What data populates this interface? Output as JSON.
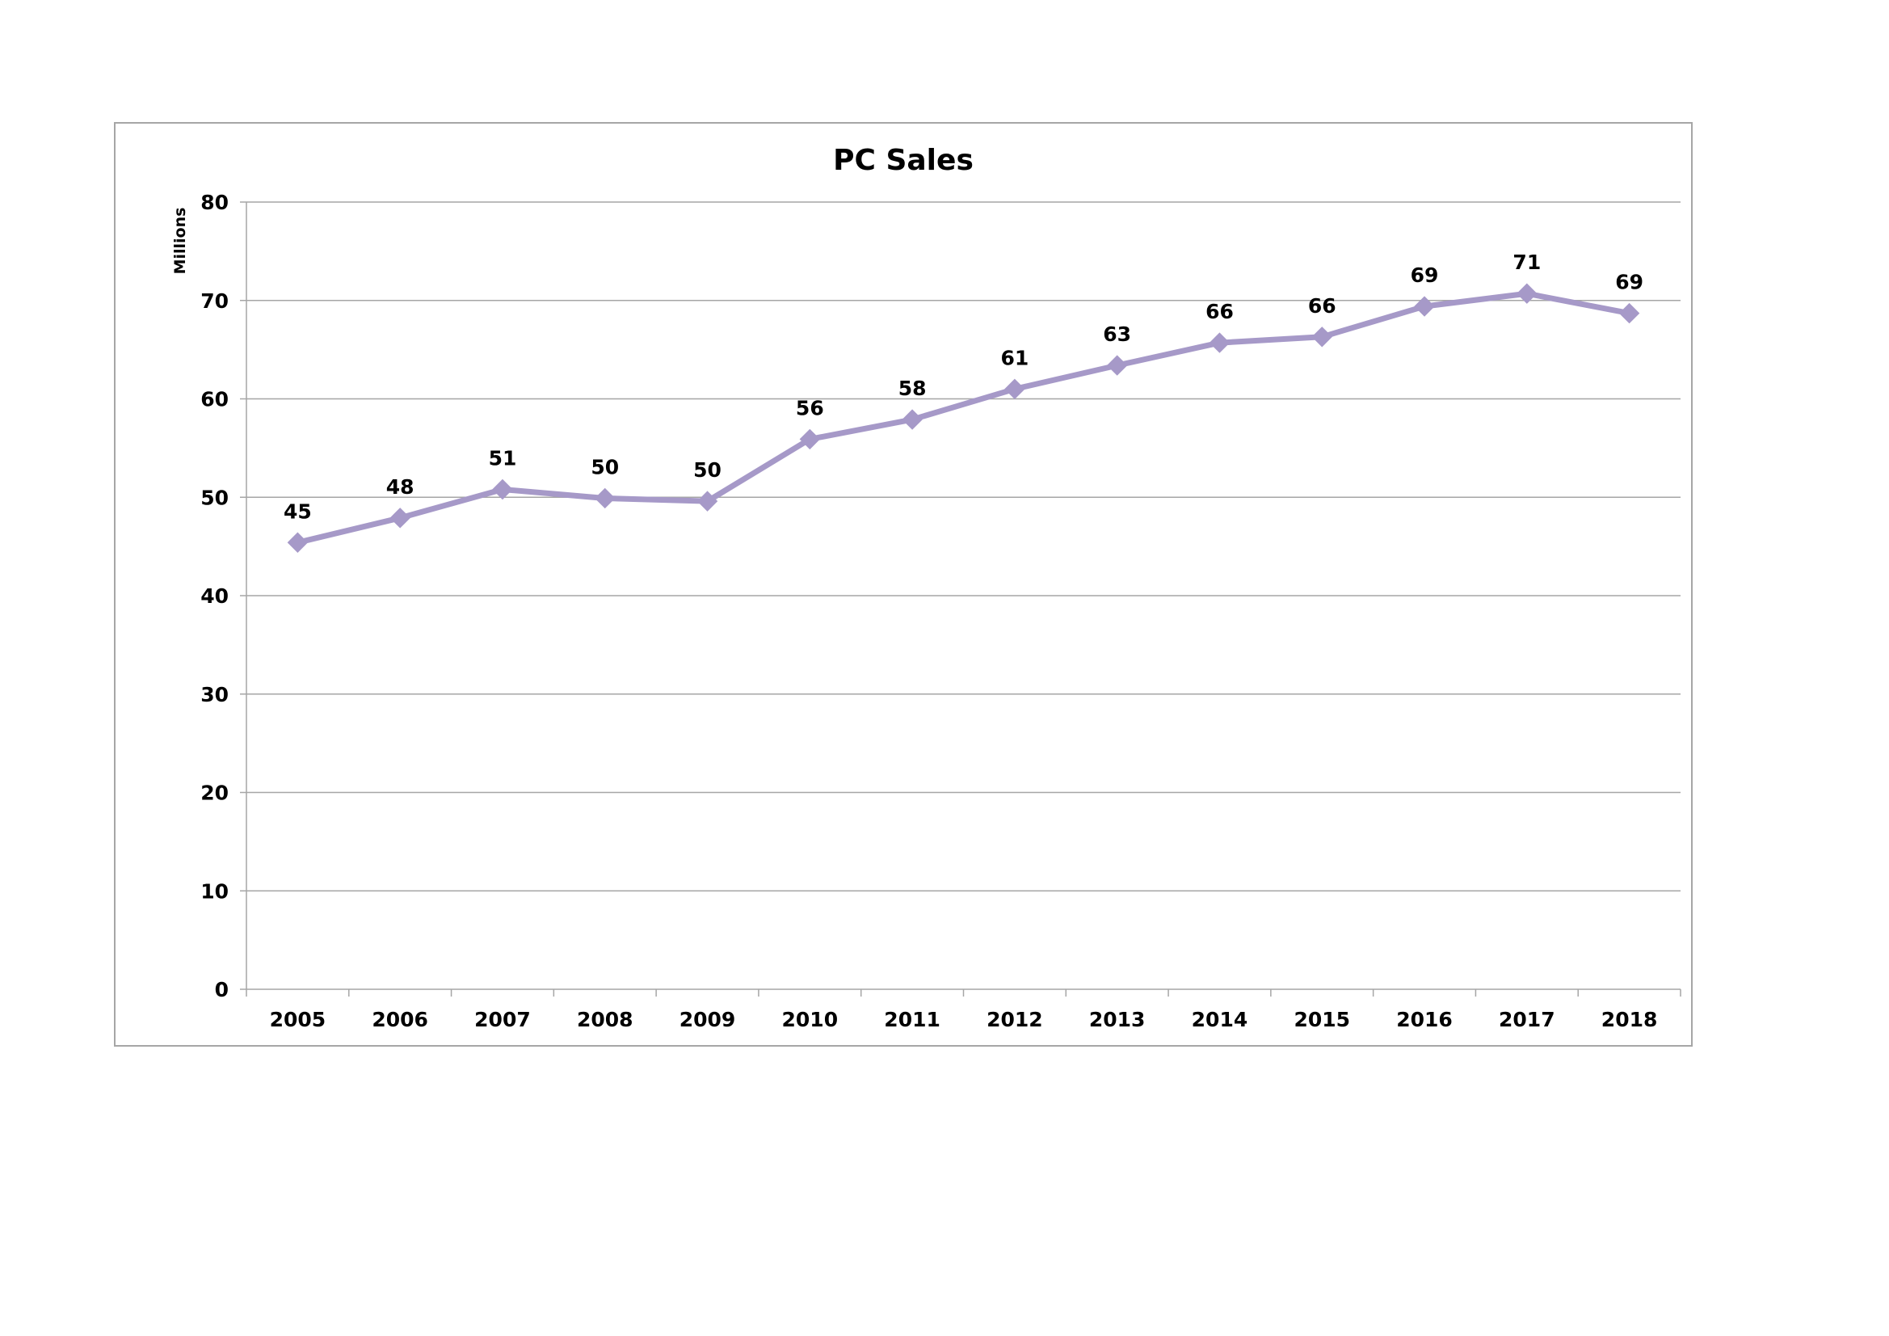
{
  "chart_data": {
    "type": "line",
    "title": "PC Sales",
    "xlabel": "",
    "ylabel": "Millions",
    "categories": [
      "2005",
      "2006",
      "2007",
      "2008",
      "2009",
      "2010",
      "2011",
      "2012",
      "2013",
      "2014",
      "2015",
      "2016",
      "2017",
      "2018"
    ],
    "series": [
      {
        "values": [
          45.4,
          47.9,
          50.8,
          49.9,
          49.6,
          55.9,
          57.9,
          61.0,
          63.4,
          65.7,
          66.3,
          69.4,
          70.7,
          68.7
        ],
        "labels": [
          "45",
          "48",
          "51",
          "50",
          "50",
          "56",
          "58",
          "61",
          "63",
          "66",
          "66",
          "69",
          "71",
          "69"
        ],
        "color": "#a699c8",
        "marker": "diamond"
      }
    ],
    "ylim": [
      0,
      80
    ],
    "yticks": [
      "0",
      "10",
      "20",
      "30",
      "40",
      "50",
      "60",
      "70",
      "80"
    ],
    "grid": true,
    "legend": "none",
    "colors": {
      "line": "#a699c8",
      "gridline": "#a6a6a6",
      "border": "#a6a6a6"
    }
  }
}
